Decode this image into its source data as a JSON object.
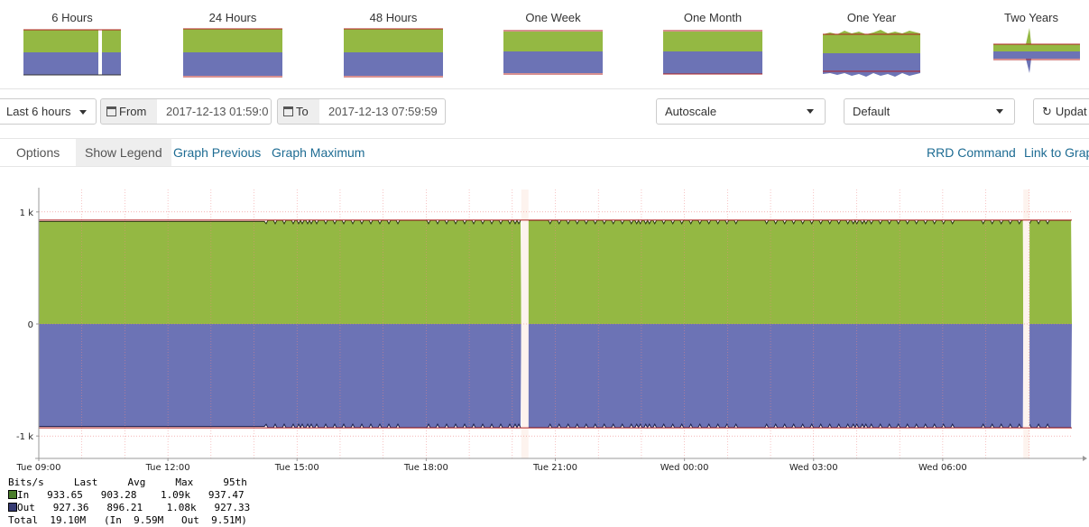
{
  "thumbnails": [
    {
      "label": "6 Hours"
    },
    {
      "label": "24 Hours"
    },
    {
      "label": "48 Hours"
    },
    {
      "label": "One Week"
    },
    {
      "label": "One Month"
    },
    {
      "label": "One Year"
    },
    {
      "label": "Two Years"
    }
  ],
  "toolbar": {
    "period_label": "Last 6 hours",
    "from_label": "From",
    "from_value": "2017-12-13 01:59:0",
    "to_label": "To",
    "to_value": "2017-12-13 07:59:59",
    "scale_select": "Autoscale",
    "style_select": "Default",
    "update_label": "Updat"
  },
  "options": {
    "title": "Options",
    "show_legend": "Show Legend",
    "graph_previous": "Graph Previous",
    "graph_maximum": "Graph Maximum",
    "rrd_command": "RRD Command",
    "link_to_graph": "Link to Graph"
  },
  "colors": {
    "in": "#94b843",
    "out": "#6c73b5",
    "limit": "#b22222",
    "link": "#1e6c93"
  },
  "chart_data": {
    "type": "area",
    "ylim": [
      -1200,
      1200
    ],
    "y_ticks": [
      {
        "value": 1000,
        "label": "1 k"
      },
      {
        "value": 0,
        "label": "0"
      },
      {
        "value": -1000,
        "label": "-1 k"
      }
    ],
    "x_ticks": [
      "Tue 09:00",
      "Tue 12:00",
      "Tue 15:00",
      "Tue 18:00",
      "Tue 21:00",
      "Wed 00:00",
      "Wed 03:00",
      "Wed 06:00"
    ],
    "limit_line": 927,
    "series": [
      {
        "name": "In",
        "typical": 925,
        "low": 895
      },
      {
        "name": "Out",
        "typical": -925,
        "low": -895
      }
    ],
    "gaps": [
      {
        "start_fraction": 0.467,
        "end_fraction": 0.474
      },
      {
        "start_fraction": 0.953,
        "end_fraction": 0.959
      }
    ],
    "legend": {
      "header": "Bits/s     Last     Avg     Max     95th",
      "rows": [
        {
          "name": "In",
          "text": "In   933.65   903.28    1.09k   937.47"
        },
        {
          "name": "Out",
          "text": "Out   927.36   896.21    1.08k   927.33"
        }
      ],
      "total": "Total  19.10M   (In  9.59M   Out  9.51M)"
    }
  }
}
